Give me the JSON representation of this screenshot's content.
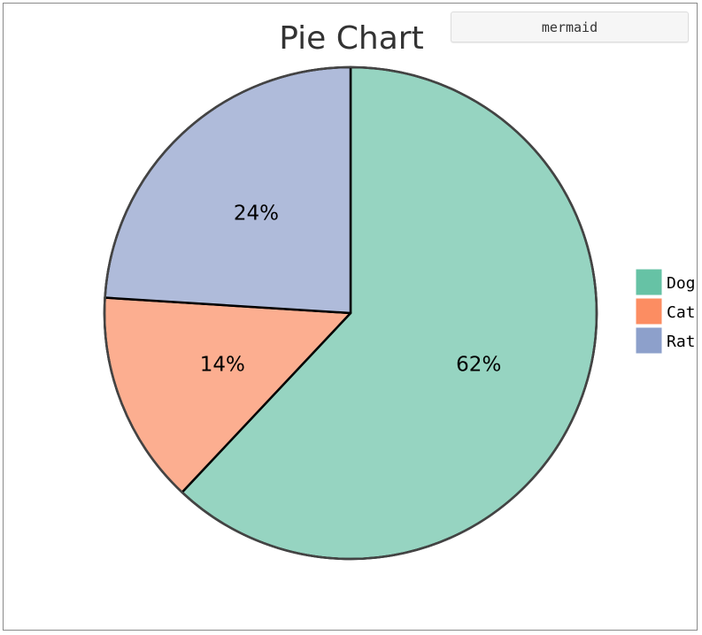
{
  "badge": {
    "label": "mermaid"
  },
  "chart_data": {
    "type": "pie",
    "title": "Pie Chart",
    "slices": [
      {
        "label": "Dog",
        "value": 62,
        "display": "62%",
        "color": "#66c2a5",
        "fill": "#96d4c1"
      },
      {
        "label": "Cat",
        "value": 14,
        "display": "14%",
        "color": "#fc8d62",
        "fill": "#fcae90"
      },
      {
        "label": "Rat",
        "value": 24,
        "display": "24%",
        "color": "#8da0cb",
        "fill": "#afbbda"
      }
    ],
    "legend_position": "right"
  }
}
